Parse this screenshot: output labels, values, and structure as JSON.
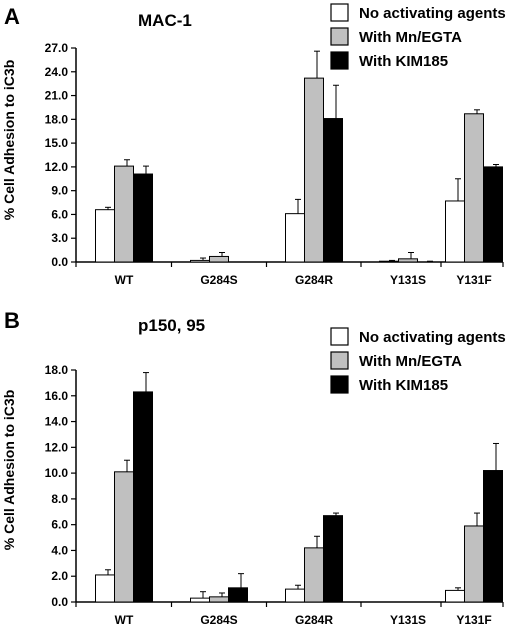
{
  "colors": {
    "No activating agents": "#ffffff",
    "With Mn/EGTA": "#c0c0c0",
    "With KIM185": "#000000"
  },
  "chart_data": [
    {
      "type": "bar",
      "panel_label": "A",
      "title": "MAC-1",
      "ylabel": "% Cell Adhesion to iC3b",
      "xlabel": "",
      "categories": [
        "WT",
        "G284S",
        "G284R",
        "Y131S",
        "Y131F"
      ],
      "yticks": [
        "0.0",
        "3.0",
        "6.0",
        "9.0",
        "12.0",
        "15.0",
        "18.0",
        "21.0",
        "24.0",
        "27.0"
      ],
      "ylim": [
        0,
        27
      ],
      "grid": false,
      "legend_position": "top-right",
      "series": [
        {
          "name": "No activating agents",
          "values": [
            6.6,
            0.2,
            6.1,
            0.1,
            7.7
          ],
          "errors": [
            0.3,
            0.3,
            1.8,
            0.1,
            2.8
          ]
        },
        {
          "name": "With Mn/EGTA",
          "values": [
            12.1,
            0.7,
            23.2,
            0.4,
            18.7
          ],
          "errors": [
            0.8,
            0.5,
            3.4,
            0.8,
            0.5
          ]
        },
        {
          "name": "With KIM185",
          "values": [
            11.1,
            0.0,
            18.1,
            0.0,
            12.0
          ],
          "errors": [
            1.0,
            0.0,
            4.2,
            0.1,
            0.3
          ]
        }
      ]
    },
    {
      "type": "bar",
      "panel_label": "B",
      "title": "p150, 95",
      "ylabel": "% Cell Adhesion to iC3b",
      "xlabel": "",
      "categories": [
        "WT",
        "G284S",
        "G284R",
        "Y131S",
        "Y131F"
      ],
      "yticks": [
        "0.0",
        "2.0",
        "4.0",
        "6.0",
        "8.0",
        "10.0",
        "12.0",
        "14.0",
        "16.0",
        "18.0"
      ],
      "ylim": [
        0,
        18
      ],
      "grid": false,
      "legend_position": "top-right",
      "series": [
        {
          "name": "No activating agents",
          "values": [
            2.1,
            0.3,
            1.0,
            0.0,
            0.9
          ],
          "errors": [
            0.4,
            0.5,
            0.3,
            0.0,
            0.2
          ]
        },
        {
          "name": "With Mn/EGTA",
          "values": [
            10.1,
            0.4,
            4.2,
            0.0,
            5.9
          ],
          "errors": [
            0.9,
            0.3,
            0.9,
            0.0,
            1.0
          ]
        },
        {
          "name": "With KIM185",
          "values": [
            16.3,
            1.1,
            6.7,
            0.0,
            10.2
          ],
          "errors": [
            1.5,
            1.1,
            0.2,
            0.0,
            2.1
          ]
        }
      ]
    }
  ]
}
